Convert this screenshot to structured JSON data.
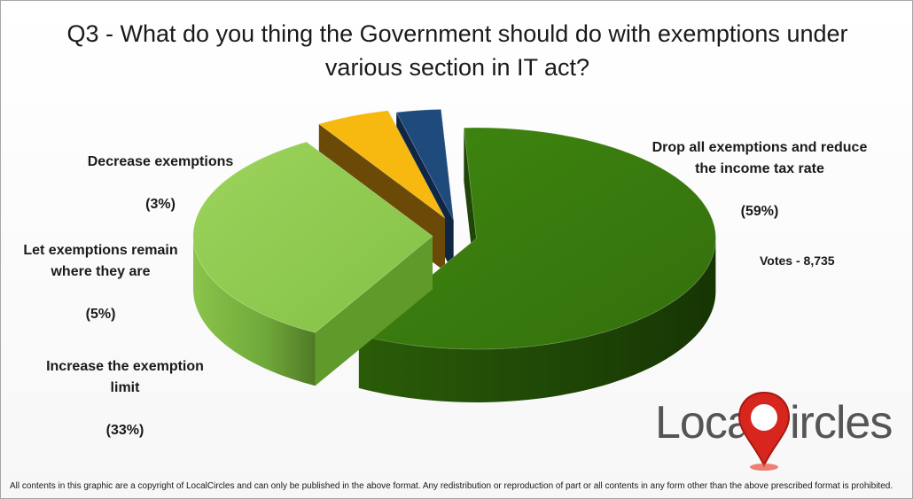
{
  "title": "Q3 - What do you thing the Government should do with exemptions under\nvarious section in IT act?",
  "votes": "Votes - 8,735",
  "brand": {
    "part1": "Local",
    "part2": "ircles"
  },
  "copyright": "All contents in this graphic are a copyright of LocalCircles and can only be published in the above format. Any redistribution or reproduction of part or all contents in any form other than the above prescribed format is prohibited.",
  "chart_data": {
    "type": "pie",
    "title": "Q3 - What do you thing the Government should do with exemptions under various section in IT act?",
    "slices": [
      {
        "label": "Drop all exemptions and reduce\nthe income tax rate",
        "percent_label": "(59%)",
        "value": 59,
        "color": "#3a7d0c",
        "side_color": "#1f4607"
      },
      {
        "label": "Increase the exemption\nlimit",
        "percent_label": "(33%)",
        "value": 33,
        "color": "#8fcb4e",
        "side_color": "#5f9a2a"
      },
      {
        "label": "Let exemptions remain\nwhere they are",
        "percent_label": "(5%)",
        "value": 5,
        "color": "#f7b90f",
        "side_color": "#6b4906"
      },
      {
        "label": "Decrease exemptions",
        "percent_label": "(3%)",
        "value": 3,
        "color": "#1f4a7c",
        "side_color": "#0f2744"
      }
    ]
  }
}
